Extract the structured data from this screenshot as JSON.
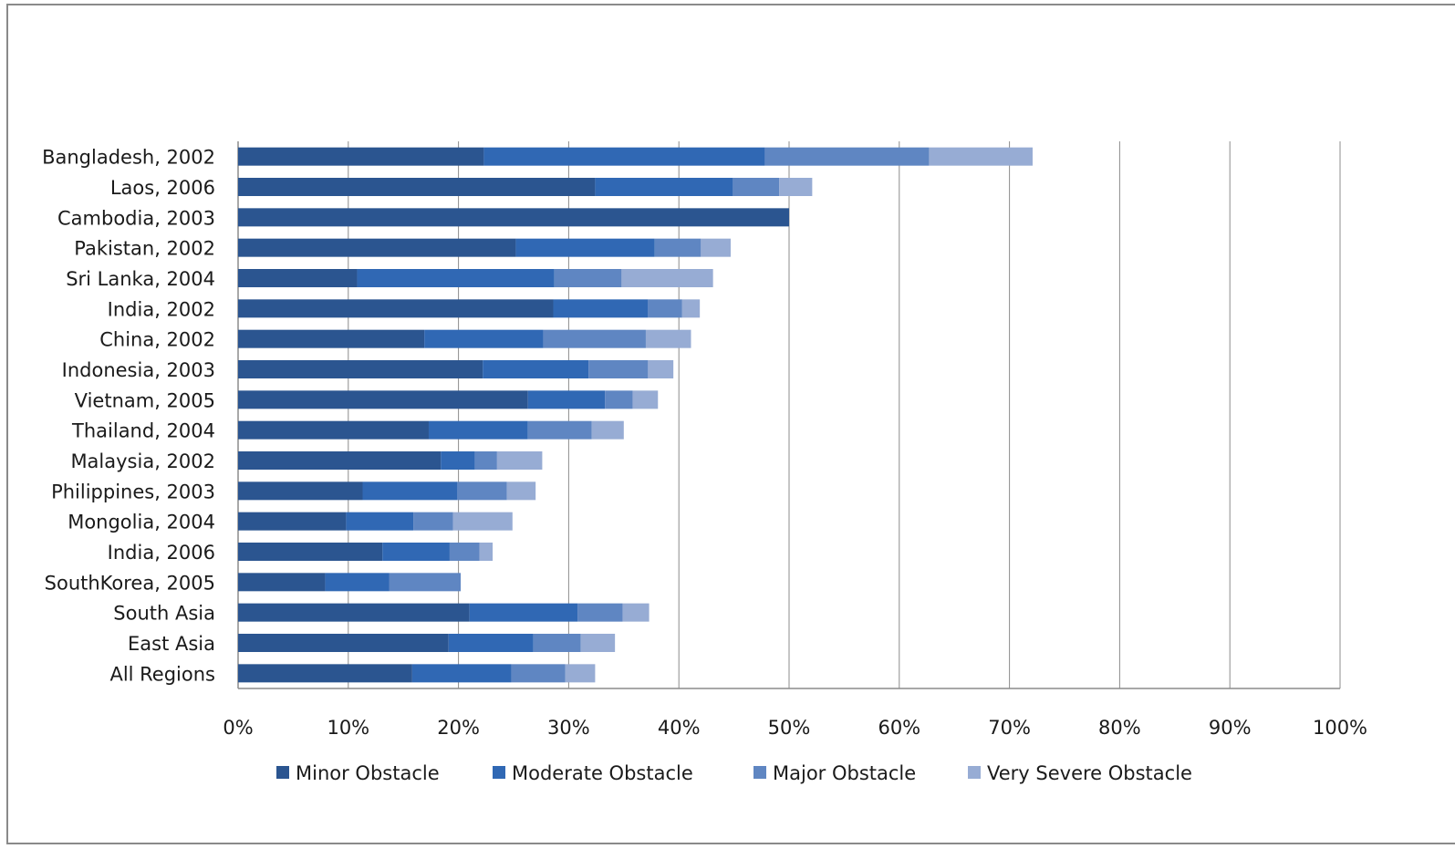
{
  "chart_data": {
    "type": "bar",
    "orientation": "horizontal",
    "stacked": true,
    "title": "",
    "xlabel": "",
    "ylabel": "",
    "xlim": [
      0,
      100
    ],
    "x_tick_labels": [
      "0%",
      "10%",
      "20%",
      "30%",
      "40%",
      "50%",
      "60%",
      "70%",
      "80%",
      "90%",
      "100%"
    ],
    "grid": "vertical",
    "legend_position": "bottom",
    "categories": [
      "Bangladesh, 2002",
      "Laos, 2006",
      "Cambodia, 2003",
      "Pakistan, 2002",
      "Sri Lanka, 2004",
      "India, 2002",
      "China, 2002",
      "Indonesia, 2003",
      "Vietnam, 2005",
      "Thailand, 2004",
      "Malaysia, 2002",
      "Philippines, 2003",
      "Mongolia, 2004",
      "India, 2006",
      "SouthKorea, 2005",
      "South Asia",
      "East Asia",
      "All Regions"
    ],
    "series": [
      {
        "name": "Minor Obstacle",
        "color": "#2b5590",
        "values": [
          22.3,
          32.4,
          50.0,
          25.2,
          10.8,
          28.6,
          16.9,
          22.2,
          26.3,
          17.3,
          18.4,
          11.3,
          9.8,
          13.1,
          7.9,
          21.0,
          19.1,
          15.8
        ]
      },
      {
        "name": "Moderate Obstacle",
        "color": "#3068b4",
        "values": [
          25.5,
          12.5,
          0,
          12.6,
          17.9,
          8.6,
          10.8,
          9.6,
          7.0,
          9.0,
          3.1,
          8.6,
          6.1,
          6.1,
          5.8,
          9.8,
          7.7,
          9.0
        ]
      },
      {
        "name": "Major Obstacle",
        "color": "#5f86c2",
        "values": [
          14.9,
          4.2,
          0,
          4.2,
          6.1,
          3.1,
          9.3,
          5.4,
          2.5,
          5.8,
          2.0,
          4.5,
          3.6,
          2.7,
          6.5,
          4.1,
          4.3,
          4.9
        ]
      },
      {
        "name": "Very Severe Obstacle",
        "color": "#97acd4",
        "values": [
          9.4,
          3.0,
          0,
          2.7,
          8.3,
          1.6,
          4.1,
          2.3,
          2.3,
          2.9,
          4.1,
          2.6,
          5.4,
          1.2,
          0,
          2.4,
          3.1,
          2.7
        ]
      }
    ]
  }
}
